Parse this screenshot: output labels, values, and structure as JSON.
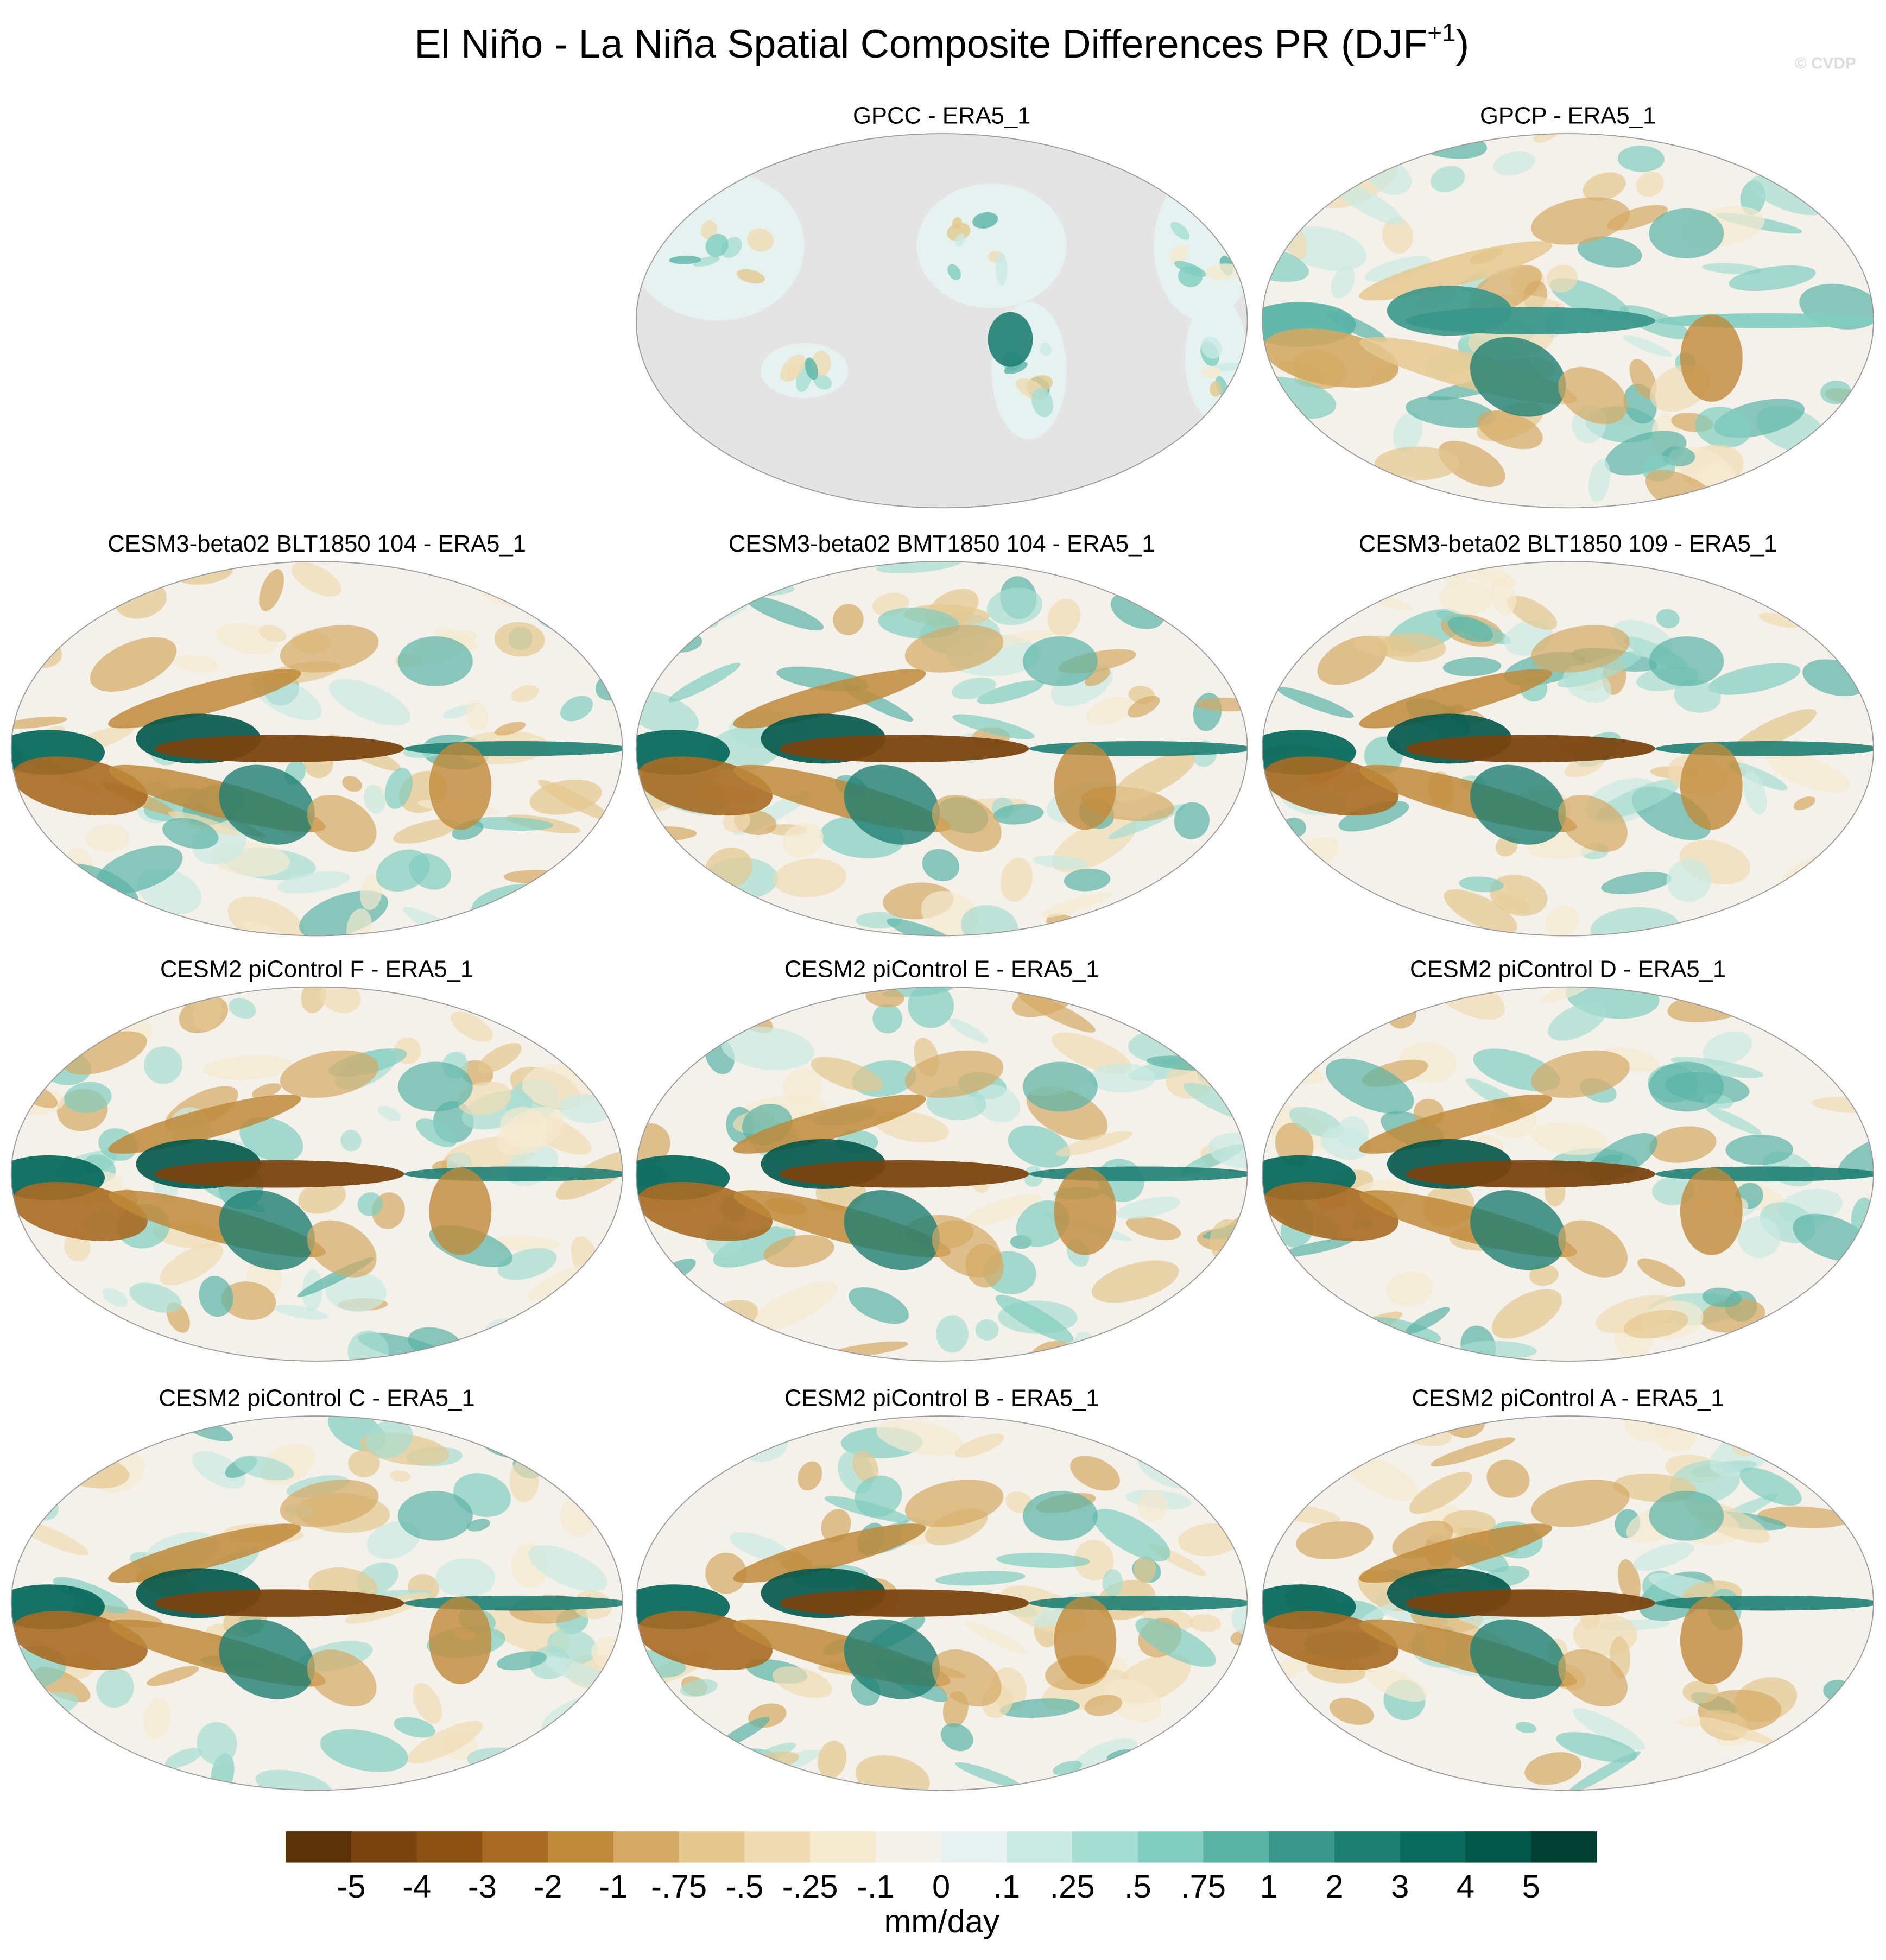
{
  "title": {
    "text": "El Niño - La Niña Spatial Composite Differences PR (DJF",
    "superscript": "+1",
    "suffix": ")"
  },
  "watermark": "© CVDP",
  "panels": [
    {
      "title": "GPCC - ERA5_1"
    },
    {
      "title": "GPCP - ERA5_1"
    },
    {
      "title": "CESM3-beta02 BLT1850 104 - ERA5_1"
    },
    {
      "title": "CESM3-beta02 BMT1850 104 - ERA5_1"
    },
    {
      "title": "CESM3-beta02 BLT1850 109 - ERA5_1"
    },
    {
      "title": "CESM2 piControl F - ERA5_1"
    },
    {
      "title": "CESM2 piControl E - ERA5_1"
    },
    {
      "title": "CESM2 piControl D - ERA5_1"
    },
    {
      "title": "CESM2 piControl C - ERA5_1"
    },
    {
      "title": "CESM2 piControl B - ERA5_1"
    },
    {
      "title": "CESM2 piControl A - ERA5_1"
    }
  ],
  "colorbar": {
    "colors": [
      "#5a3408",
      "#7a4410",
      "#8e5214",
      "#a86a22",
      "#c08a3a",
      "#d4aa64",
      "#e4c88e",
      "#efdbb2",
      "#f5ead0",
      "#f4f1ea",
      "#e6f2ef",
      "#c9eae3",
      "#a6ddd2",
      "#80cdbf",
      "#5ab4a6",
      "#3a978b",
      "#1f7f73",
      "#0a6a5d",
      "#03564a",
      "#013f33"
    ],
    "labels": [
      "-5",
      "-4",
      "-3",
      "-2",
      "-1",
      "-.75",
      "-.5",
      "-.25",
      "-.1",
      "0",
      ".1",
      ".25",
      ".5",
      ".75",
      "1",
      "2",
      "3",
      "4",
      "5"
    ],
    "units": "mm/day"
  }
}
